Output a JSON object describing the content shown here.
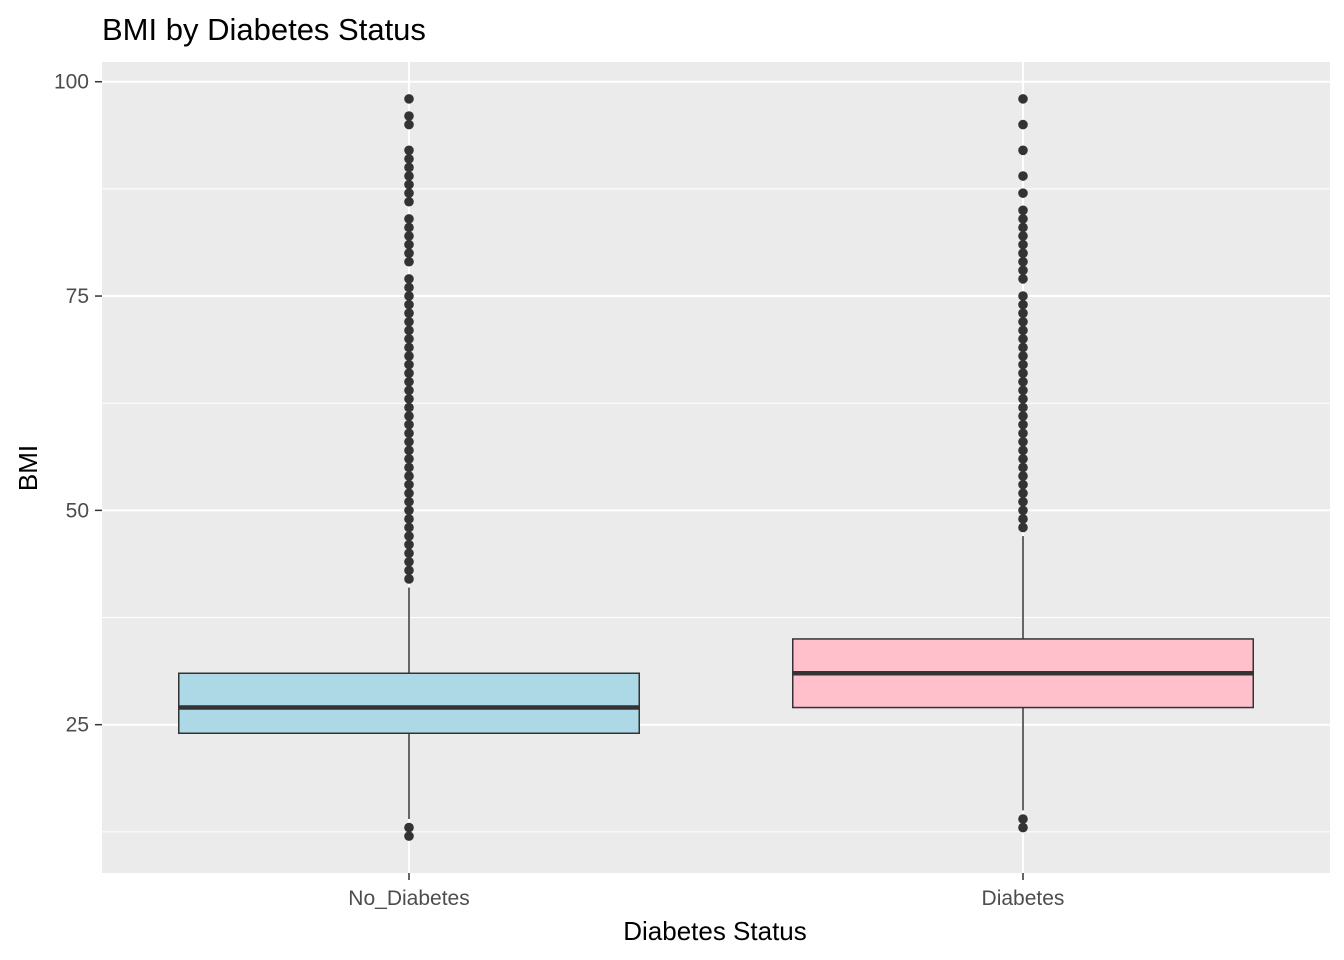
{
  "chart_data": {
    "type": "boxplot",
    "title": "BMI by Diabetes Status",
    "xlabel": "Diabetes Status",
    "ylabel": "BMI",
    "ylim": [
      7.7,
      102.3
    ],
    "y_ticks": [
      25,
      50,
      75,
      100
    ],
    "y_minor_ticks": [
      12.5,
      37.5,
      62.5,
      87.5
    ],
    "grid": true,
    "categories": [
      "No_Diabetes",
      "Diabetes"
    ],
    "boxes": [
      {
        "name": "No_Diabetes",
        "fill": "#add8e6",
        "lower_whisker": 14,
        "q1": 24,
        "median": 27,
        "q3": 31,
        "upper_whisker": 41,
        "outliers": [
          12,
          13,
          42,
          43,
          44,
          45,
          46,
          47,
          48,
          49,
          50,
          51,
          52,
          53,
          54,
          55,
          56,
          57,
          58,
          59,
          60,
          61,
          62,
          63,
          64,
          65,
          66,
          67,
          68,
          69,
          70,
          71,
          72,
          73,
          74,
          75,
          76,
          77,
          79,
          80,
          81,
          82,
          83,
          84,
          86,
          87,
          88,
          89,
          90,
          91,
          92,
          95,
          96,
          98
        ]
      },
      {
        "name": "Diabetes",
        "fill": "#ffc0cb",
        "lower_whisker": 15,
        "q1": 27,
        "median": 31,
        "q3": 35,
        "upper_whisker": 47,
        "outliers": [
          13,
          14,
          48,
          49,
          50,
          51,
          52,
          53,
          54,
          55,
          56,
          57,
          58,
          59,
          60,
          61,
          62,
          63,
          64,
          65,
          66,
          67,
          68,
          69,
          70,
          71,
          72,
          73,
          74,
          75,
          77,
          78,
          79,
          80,
          81,
          82,
          83,
          84,
          85,
          87,
          89,
          92,
          95,
          98
        ]
      }
    ],
    "colors": {
      "panel_background": "#ebebeb",
      "grid_major": "#ffffff",
      "box_outline": "#333333",
      "outlier_point": "#333333"
    }
  }
}
